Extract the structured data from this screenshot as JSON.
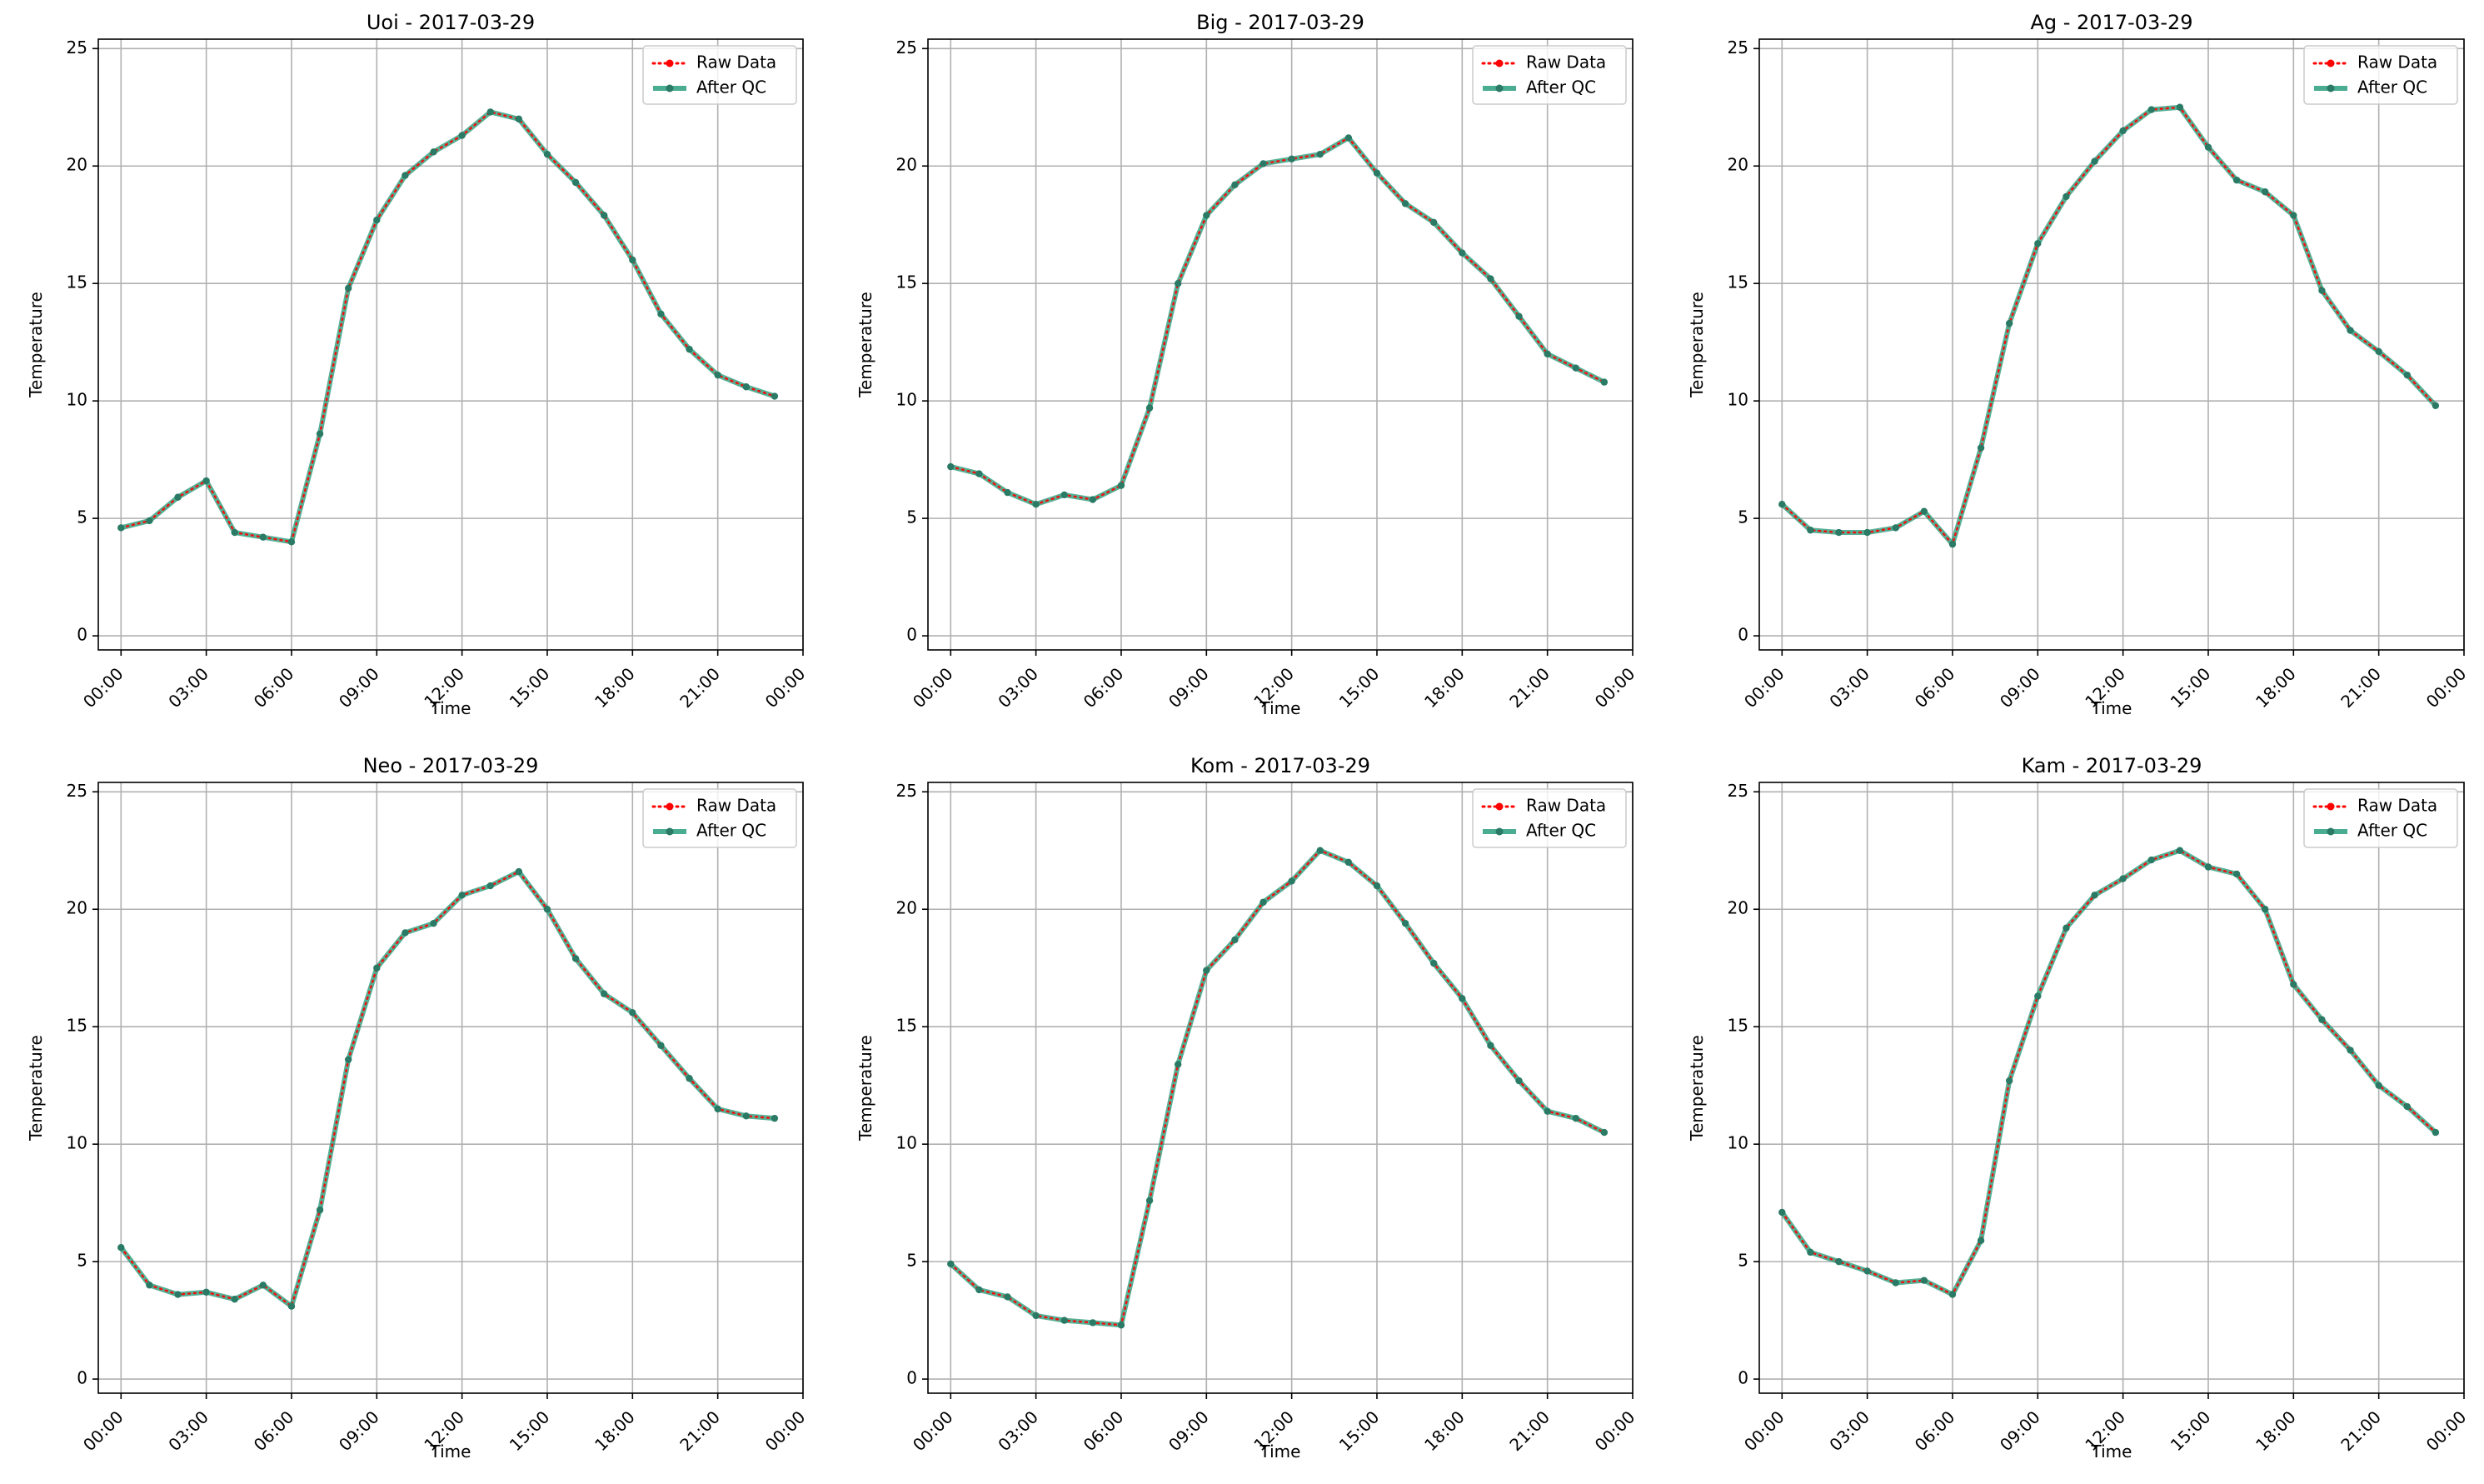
{
  "figure": {
    "background": "#ffffff"
  },
  "colors": {
    "raw": "#ff0000",
    "after_qc": "#2a9d7c",
    "after_qc_marker": "#2a7a65",
    "grid": "#b0b0b0"
  },
  "chart_data": [
    {
      "type": "line",
      "title": "Uoi - 2017-03-29",
      "xlabel": "Time",
      "ylabel": "Temperature",
      "ylim": [
        -0.6,
        25.4
      ],
      "yticks": [
        0,
        5,
        10,
        15,
        20,
        25
      ],
      "xticks": [
        "00:00",
        "03:00",
        "06:00",
        "09:00",
        "12:00",
        "15:00",
        "18:00",
        "21:00",
        "00:00"
      ],
      "grid": true,
      "legend": "upper right",
      "x": [
        "00:00",
        "01:00",
        "02:00",
        "03:00",
        "04:00",
        "05:00",
        "06:00",
        "07:00",
        "08:00",
        "09:00",
        "10:00",
        "11:00",
        "12:00",
        "13:00",
        "14:00",
        "15:00",
        "16:00",
        "17:00",
        "18:00",
        "19:00",
        "20:00",
        "21:00",
        "22:00",
        "23:00"
      ],
      "series": [
        {
          "name": "Raw Data",
          "style": "dotted",
          "values": [
            4.6,
            4.9,
            5.9,
            6.6,
            4.4,
            4.2,
            4.0,
            8.6,
            14.8,
            17.7,
            19.6,
            20.6,
            21.3,
            22.3,
            22.0,
            20.5,
            19.3,
            17.9,
            16.0,
            13.7,
            12.2,
            11.1,
            10.6,
            10.2
          ]
        },
        {
          "name": "After QC",
          "style": "solid",
          "values": [
            4.6,
            4.9,
            5.9,
            6.6,
            4.4,
            4.2,
            4.0,
            8.6,
            14.8,
            17.7,
            19.6,
            20.6,
            21.3,
            22.3,
            22.0,
            20.5,
            19.3,
            17.9,
            16.0,
            13.7,
            12.2,
            11.1,
            10.6,
            10.2
          ]
        }
      ]
    },
    {
      "type": "line",
      "title": "Big - 2017-03-29",
      "xlabel": "Time",
      "ylabel": "Temperature",
      "ylim": [
        -0.6,
        25.4
      ],
      "yticks": [
        0,
        5,
        10,
        15,
        20,
        25
      ],
      "xticks": [
        "00:00",
        "03:00",
        "06:00",
        "09:00",
        "12:00",
        "15:00",
        "18:00",
        "21:00",
        "00:00"
      ],
      "grid": true,
      "legend": "upper right",
      "x": [
        "00:00",
        "01:00",
        "02:00",
        "03:00",
        "04:00",
        "05:00",
        "06:00",
        "07:00",
        "08:00",
        "09:00",
        "10:00",
        "11:00",
        "12:00",
        "13:00",
        "14:00",
        "15:00",
        "16:00",
        "17:00",
        "18:00",
        "19:00",
        "20:00",
        "21:00",
        "22:00",
        "23:00"
      ],
      "series": [
        {
          "name": "Raw Data",
          "style": "dotted",
          "values": [
            7.2,
            6.9,
            6.1,
            5.6,
            6.0,
            5.8,
            6.4,
            9.7,
            15.0,
            17.9,
            19.2,
            20.1,
            20.3,
            20.5,
            21.2,
            19.7,
            18.4,
            17.6,
            16.3,
            15.2,
            13.6,
            12.0,
            11.4,
            10.8
          ]
        },
        {
          "name": "After QC",
          "style": "solid",
          "values": [
            7.2,
            6.9,
            6.1,
            5.6,
            6.0,
            5.8,
            6.4,
            9.7,
            15.0,
            17.9,
            19.2,
            20.1,
            20.3,
            20.5,
            21.2,
            19.7,
            18.4,
            17.6,
            16.3,
            15.2,
            13.6,
            12.0,
            11.4,
            10.8
          ]
        }
      ]
    },
    {
      "type": "line",
      "title": "Ag - 2017-03-29",
      "xlabel": "Time",
      "ylabel": "Temperature",
      "ylim": [
        -0.6,
        25.4
      ],
      "yticks": [
        0,
        5,
        10,
        15,
        20,
        25
      ],
      "xticks": [
        "00:00",
        "03:00",
        "06:00",
        "09:00",
        "12:00",
        "15:00",
        "18:00",
        "21:00",
        "00:00"
      ],
      "grid": true,
      "legend": "upper right",
      "x": [
        "00:00",
        "01:00",
        "02:00",
        "03:00",
        "04:00",
        "05:00",
        "06:00",
        "07:00",
        "08:00",
        "09:00",
        "10:00",
        "11:00",
        "12:00",
        "13:00",
        "14:00",
        "15:00",
        "16:00",
        "17:00",
        "18:00",
        "19:00",
        "20:00",
        "21:00",
        "22:00",
        "23:00"
      ],
      "series": [
        {
          "name": "Raw Data",
          "style": "dotted",
          "values": [
            5.6,
            4.5,
            4.4,
            4.4,
            4.6,
            5.3,
            3.9,
            8.0,
            13.3,
            16.7,
            18.7,
            20.2,
            21.5,
            22.4,
            22.5,
            20.8,
            19.4,
            18.9,
            17.9,
            14.7,
            13.0,
            12.1,
            11.1,
            9.8
          ]
        },
        {
          "name": "After QC",
          "style": "solid",
          "values": [
            5.6,
            4.5,
            4.4,
            4.4,
            4.6,
            5.3,
            3.9,
            8.0,
            13.3,
            16.7,
            18.7,
            20.2,
            21.5,
            22.4,
            22.5,
            20.8,
            19.4,
            18.9,
            17.9,
            14.7,
            13.0,
            12.1,
            11.1,
            9.8
          ]
        }
      ]
    },
    {
      "type": "line",
      "title": "Neo - 2017-03-29",
      "xlabel": "Time",
      "ylabel": "Temperature",
      "ylim": [
        -0.6,
        25.4
      ],
      "yticks": [
        0,
        5,
        10,
        15,
        20,
        25
      ],
      "xticks": [
        "00:00",
        "03:00",
        "06:00",
        "09:00",
        "12:00",
        "15:00",
        "18:00",
        "21:00",
        "00:00"
      ],
      "grid": true,
      "legend": "upper right",
      "x": [
        "00:00",
        "01:00",
        "02:00",
        "03:00",
        "04:00",
        "05:00",
        "06:00",
        "07:00",
        "08:00",
        "09:00",
        "10:00",
        "11:00",
        "12:00",
        "13:00",
        "14:00",
        "15:00",
        "16:00",
        "17:00",
        "18:00",
        "19:00",
        "20:00",
        "21:00",
        "22:00",
        "23:00"
      ],
      "series": [
        {
          "name": "Raw Data",
          "style": "dotted",
          "values": [
            5.6,
            4.0,
            3.6,
            3.7,
            3.4,
            4.0,
            3.1,
            7.2,
            13.6,
            17.5,
            19.0,
            19.4,
            20.6,
            21.0,
            21.6,
            20.0,
            17.9,
            16.4,
            15.6,
            14.2,
            12.8,
            11.5,
            11.2,
            11.1
          ]
        },
        {
          "name": "After QC",
          "style": "solid",
          "values": [
            5.6,
            4.0,
            3.6,
            3.7,
            3.4,
            4.0,
            3.1,
            7.2,
            13.6,
            17.5,
            19.0,
            19.4,
            20.6,
            21.0,
            21.6,
            20.0,
            17.9,
            16.4,
            15.6,
            14.2,
            12.8,
            11.5,
            11.2,
            11.1
          ]
        }
      ]
    },
    {
      "type": "line",
      "title": "Kom - 2017-03-29",
      "xlabel": "Time",
      "ylabel": "Temperature",
      "ylim": [
        -0.6,
        25.4
      ],
      "yticks": [
        0,
        5,
        10,
        15,
        20,
        25
      ],
      "xticks": [
        "00:00",
        "03:00",
        "06:00",
        "09:00",
        "12:00",
        "15:00",
        "18:00",
        "21:00",
        "00:00"
      ],
      "grid": true,
      "legend": "upper right",
      "x": [
        "00:00",
        "01:00",
        "02:00",
        "03:00",
        "04:00",
        "05:00",
        "06:00",
        "07:00",
        "08:00",
        "09:00",
        "10:00",
        "11:00",
        "12:00",
        "13:00",
        "14:00",
        "15:00",
        "16:00",
        "17:00",
        "18:00",
        "19:00",
        "20:00",
        "21:00",
        "22:00",
        "23:00"
      ],
      "series": [
        {
          "name": "Raw Data",
          "style": "dotted",
          "values": [
            4.9,
            3.8,
            3.5,
            2.7,
            2.5,
            2.4,
            2.3,
            7.6,
            13.4,
            17.4,
            18.7,
            20.3,
            21.2,
            22.5,
            22.0,
            21.0,
            19.4,
            17.7,
            16.2,
            14.2,
            12.7,
            11.4,
            11.1,
            10.5
          ]
        },
        {
          "name": "After QC",
          "style": "solid",
          "values": [
            4.9,
            3.8,
            3.5,
            2.7,
            2.5,
            2.4,
            2.3,
            7.6,
            13.4,
            17.4,
            18.7,
            20.3,
            21.2,
            22.5,
            22.0,
            21.0,
            19.4,
            17.7,
            16.2,
            14.2,
            12.7,
            11.4,
            11.1,
            10.5
          ]
        }
      ]
    },
    {
      "type": "line",
      "title": "Kam - 2017-03-29",
      "xlabel": "Time",
      "ylabel": "Temperature",
      "ylim": [
        -0.6,
        25.4
      ],
      "yticks": [
        0,
        5,
        10,
        15,
        20,
        25
      ],
      "xticks": [
        "00:00",
        "03:00",
        "06:00",
        "09:00",
        "12:00",
        "15:00",
        "18:00",
        "21:00",
        "00:00"
      ],
      "grid": true,
      "legend": "upper right",
      "x": [
        "00:00",
        "01:00",
        "02:00",
        "03:00",
        "04:00",
        "05:00",
        "06:00",
        "07:00",
        "08:00",
        "09:00",
        "10:00",
        "11:00",
        "12:00",
        "13:00",
        "14:00",
        "15:00",
        "16:00",
        "17:00",
        "18:00",
        "19:00",
        "20:00",
        "21:00",
        "22:00",
        "23:00"
      ],
      "series": [
        {
          "name": "Raw Data",
          "style": "dotted",
          "values": [
            7.1,
            5.4,
            5.0,
            4.6,
            4.1,
            4.2,
            3.6,
            5.9,
            12.7,
            16.3,
            19.2,
            20.6,
            21.3,
            22.1,
            22.5,
            21.8,
            21.5,
            20.0,
            16.8,
            15.3,
            14.0,
            12.5,
            11.6,
            10.5
          ]
        },
        {
          "name": "After QC",
          "style": "solid",
          "values": [
            7.1,
            5.4,
            5.0,
            4.6,
            4.1,
            4.2,
            3.6,
            5.9,
            12.7,
            16.3,
            19.2,
            20.6,
            21.3,
            22.1,
            22.5,
            21.8,
            21.5,
            20.0,
            16.8,
            15.3,
            14.0,
            12.5,
            11.6,
            10.5
          ]
        }
      ]
    }
  ]
}
